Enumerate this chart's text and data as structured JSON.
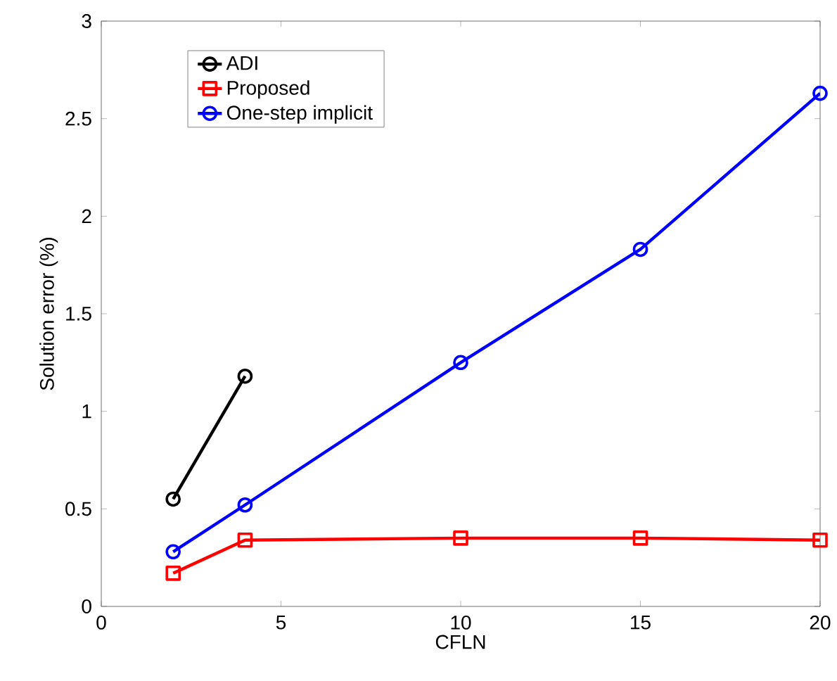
{
  "chart_data": {
    "type": "line",
    "xlabel": "CFLN",
    "ylabel": "Solution error (%)",
    "xlim": [
      0,
      20
    ],
    "xticks": [
      0,
      5,
      10,
      15,
      20
    ],
    "ylim": [
      0,
      3
    ],
    "yticks": [
      0,
      0.5,
      1,
      1.5,
      2,
      2.5,
      3
    ],
    "grid": false,
    "legend": "top left",
    "line_style": "solid",
    "series": [
      {
        "name": "ADI",
        "color": "#000000",
        "marker": "circle",
        "x": [
          2,
          4
        ],
        "values": [
          0.55,
          1.18
        ]
      },
      {
        "name": "Proposed",
        "color": "#ff0000",
        "marker": "square",
        "x": [
          2,
          4,
          10,
          15,
          20
        ],
        "values": [
          0.17,
          0.34,
          0.35,
          0.35,
          0.34
        ]
      },
      {
        "name": "One-step implicit",
        "color": "#0000ff",
        "marker": "circle",
        "x": [
          2,
          4,
          10,
          15,
          20
        ],
        "values": [
          0.28,
          0.52,
          1.25,
          1.83,
          2.63
        ]
      }
    ]
  }
}
